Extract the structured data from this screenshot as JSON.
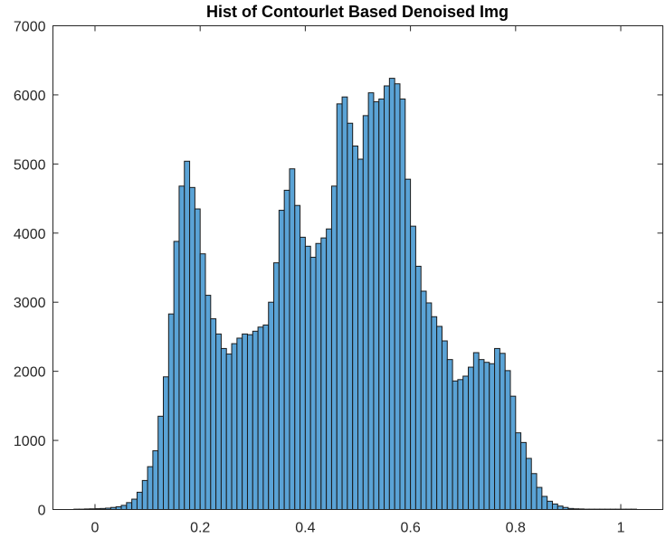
{
  "chart_data": {
    "type": "bar",
    "title": "Hist of Contourlet Based Denoised Img",
    "xlabel": "",
    "ylabel": "",
    "xlim": [
      -0.08,
      1.08
    ],
    "ylim": [
      0,
      7000
    ],
    "xticks": [
      0,
      0.2,
      0.4,
      0.6,
      0.8,
      1
    ],
    "xtick_labels": [
      "0",
      "0.2",
      "0.4",
      "0.6",
      "0.8",
      "1"
    ],
    "yticks": [
      0,
      1000,
      2000,
      3000,
      4000,
      5000,
      6000,
      7000
    ],
    "ytick_labels": [
      "0",
      "1000",
      "2000",
      "3000",
      "4000",
      "5000",
      "6000",
      "7000"
    ],
    "grid": false,
    "bar_color": "#5aa3d6",
    "edge_color": "#1a1a1a",
    "bin_width": 0.01,
    "bin_centers": [
      -0.035,
      -0.025,
      -0.015,
      -0.005,
      0.005,
      0.015,
      0.025,
      0.035,
      0.045,
      0.055,
      0.065,
      0.075,
      0.085,
      0.095,
      0.105,
      0.115,
      0.125,
      0.135,
      0.145,
      0.155,
      0.165,
      0.175,
      0.185,
      0.195,
      0.205,
      0.215,
      0.225,
      0.235,
      0.245,
      0.255,
      0.265,
      0.275,
      0.285,
      0.295,
      0.305,
      0.315,
      0.325,
      0.335,
      0.345,
      0.355,
      0.365,
      0.375,
      0.385,
      0.395,
      0.405,
      0.415,
      0.425,
      0.435,
      0.445,
      0.455,
      0.465,
      0.475,
      0.485,
      0.495,
      0.505,
      0.515,
      0.525,
      0.535,
      0.545,
      0.555,
      0.565,
      0.575,
      0.585,
      0.595,
      0.605,
      0.615,
      0.625,
      0.635,
      0.645,
      0.655,
      0.665,
      0.675,
      0.685,
      0.695,
      0.705,
      0.715,
      0.725,
      0.735,
      0.745,
      0.755,
      0.765,
      0.775,
      0.785,
      0.795,
      0.805,
      0.815,
      0.825,
      0.835,
      0.845,
      0.855,
      0.865,
      0.875,
      0.885,
      0.895,
      0.905,
      0.915,
      0.925,
      0.935,
      0.945,
      0.955,
      0.965,
      0.975,
      0.985,
      0.995,
      1.005,
      1.015,
      1.025
    ],
    "values": [
      5,
      5,
      8,
      10,
      12,
      15,
      20,
      30,
      40,
      60,
      100,
      150,
      250,
      420,
      620,
      850,
      1350,
      1920,
      2830,
      3880,
      4680,
      5040,
      4660,
      4350,
      3700,
      3100,
      2760,
      2540,
      2330,
      2250,
      2400,
      2480,
      2540,
      2530,
      2580,
      2640,
      2670,
      3000,
      3570,
      4330,
      4620,
      4930,
      4400,
      3940,
      3810,
      3650,
      3850,
      3930,
      4060,
      4680,
      5870,
      5970,
      5590,
      5260,
      5070,
      5700,
      6030,
      5900,
      5940,
      6130,
      6240,
      6160,
      5940,
      4780,
      4100,
      3520,
      3160,
      2990,
      2790,
      2650,
      2440,
      2170,
      1860,
      1880,
      1930,
      2060,
      2270,
      2170,
      2130,
      2110,
      2330,
      2260,
      2010,
      1640,
      1110,
      970,
      740,
      520,
      320,
      190,
      120,
      80,
      50,
      30,
      15,
      10,
      8,
      5,
      5,
      5,
      5,
      5,
      5,
      5,
      5,
      5,
      5
    ]
  }
}
